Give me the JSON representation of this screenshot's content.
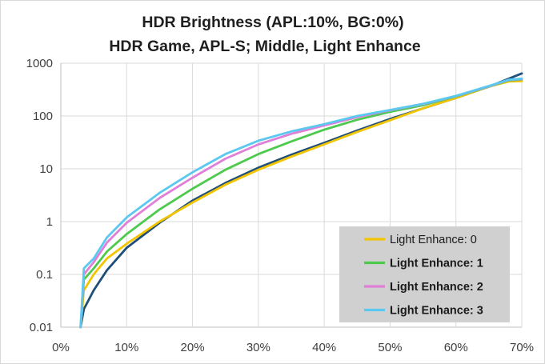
{
  "chart_data": {
    "type": "line",
    "title_lines": [
      "HDR Brightness (APL:10%, BG:0%)",
      "HDR Game, APL-S; Middle, Light Enhance"
    ],
    "xlabel": "",
    "ylabel": "",
    "xlim": [
      0,
      70
    ],
    "ylim": [
      0.01,
      1000
    ],
    "y_scale": "log",
    "grid": true,
    "legend_position": "bottom-right",
    "x_tick_labels": [
      "0%",
      "10%",
      "20%",
      "30%",
      "40%",
      "50%",
      "60%",
      "70%"
    ],
    "x_tick_values": [
      0,
      10,
      20,
      30,
      40,
      50,
      60,
      70
    ],
    "y_tick_labels": [
      "0.01",
      "0.1",
      "1",
      "10",
      "100",
      "1000"
    ],
    "y_tick_values": [
      0.01,
      0.1,
      1,
      10,
      100,
      1000
    ],
    "series": [
      {
        "name": "",
        "color": "#1f4e79",
        "x": [
          3,
          3.5,
          5,
          7,
          10,
          15,
          20,
          25,
          30,
          35,
          40,
          45,
          50,
          55,
          60,
          65,
          70
        ],
        "y": [
          0.01,
          0.022,
          0.05,
          0.12,
          0.32,
          0.95,
          2.5,
          5.4,
          10.5,
          18.5,
          31,
          53,
          88,
          140,
          220,
          360,
          640
        ]
      },
      {
        "name": "Light Enhance: 0",
        "color": "#f2c500",
        "x": [
          3,
          3.5,
          5,
          7,
          10,
          15,
          20,
          25,
          30,
          35,
          40,
          45,
          50,
          55,
          60,
          65,
          68,
          70
        ],
        "y": [
          0.01,
          0.05,
          0.1,
          0.2,
          0.38,
          1.0,
          2.3,
          5.0,
          9.6,
          17,
          29,
          50,
          83,
          140,
          220,
          360,
          450,
          460
        ]
      },
      {
        "name": "Light Enhance: 1",
        "color": "#4dc94d",
        "x": [
          3,
          3.5,
          5,
          7,
          10,
          15,
          20,
          25,
          30,
          35,
          40,
          45,
          50,
          55,
          60,
          65,
          68,
          70
        ],
        "y": [
          0.01,
          0.08,
          0.13,
          0.27,
          0.58,
          1.7,
          4.2,
          9.6,
          19,
          33,
          55,
          85,
          120,
          160,
          235,
          360,
          470,
          490
        ]
      },
      {
        "name": "Light Enhance: 2",
        "color": "#e07fd8",
        "x": [
          3,
          3.5,
          5,
          7,
          10,
          15,
          20,
          25,
          30,
          35,
          40,
          45,
          50,
          55,
          60,
          65,
          68,
          70
        ],
        "y": [
          0.01,
          0.1,
          0.17,
          0.4,
          0.95,
          2.8,
          6.8,
          15.5,
          29,
          46,
          66,
          95,
          128,
          168,
          238,
          365,
          480,
          500
        ]
      },
      {
        "name": "Light Enhance: 3",
        "color": "#5bc8f0",
        "x": [
          3,
          3.5,
          5,
          7,
          10,
          15,
          20,
          25,
          30,
          35,
          40,
          45,
          50,
          55,
          60,
          65,
          68,
          70
        ],
        "y": [
          0.01,
          0.13,
          0.2,
          0.5,
          1.2,
          3.5,
          8.6,
          19,
          34,
          51,
          70,
          100,
          130,
          170,
          240,
          370,
          485,
          510
        ]
      }
    ],
    "legend_items": [
      {
        "label": "Light Enhance: 0",
        "color": "#f2c500",
        "bold": false
      },
      {
        "label": "Light Enhance: 1",
        "color": "#4dc94d",
        "bold": true
      },
      {
        "label": "Light Enhance: 2",
        "color": "#e07fd8",
        "bold": true
      },
      {
        "label": "Light Enhance: 3",
        "color": "#5bc8f0",
        "bold": true
      }
    ],
    "legend_background": "#d0d0d0"
  }
}
